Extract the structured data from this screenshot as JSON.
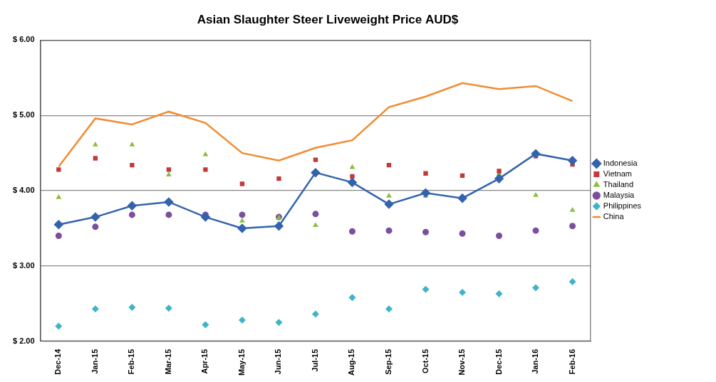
{
  "chart_data": {
    "type": "line",
    "title": "Asian Slaughter Steer Liveweight Price AUD$",
    "categories": [
      "Dec-14",
      "Jan-15",
      "Feb-15",
      "Mar-15",
      "Apr-15",
      "May-15",
      "Jun-15",
      "Jul-15",
      "Aug-15",
      "Sep-15",
      "Oct-15",
      "Nov-15",
      "Dec-15",
      "Jan-16",
      "Feb-16"
    ],
    "series": [
      {
        "name": "Indonesia",
        "color": "#3463ad",
        "type": "line",
        "marker": "diamond",
        "values": [
          3.55,
          3.65,
          3.8,
          3.85,
          3.65,
          3.5,
          3.53,
          4.24,
          4.11,
          3.82,
          3.97,
          3.9,
          4.16,
          4.49,
          4.4
        ]
      },
      {
        "name": "Vietnam",
        "color": "#c0393b",
        "type": "scatter",
        "marker": "square",
        "values": [
          4.28,
          4.43,
          4.34,
          4.28,
          4.28,
          4.09,
          4.16,
          4.41,
          4.19,
          4.34,
          4.23,
          4.2,
          4.26,
          4.46,
          4.35
        ]
      },
      {
        "name": "Thailand",
        "color": "#8fbc3f",
        "type": "scatter",
        "marker": "triangle",
        "values": [
          3.91,
          4.61,
          4.61,
          4.21,
          4.48,
          3.6,
          3.64,
          3.54,
          4.31,
          3.93,
          3.93,
          null,
          4.22,
          3.94,
          3.74
        ]
      },
      {
        "name": "Malaysia",
        "color": "#7b4f9d",
        "type": "scatter",
        "marker": "circle",
        "values": [
          3.4,
          3.52,
          3.68,
          3.68,
          3.68,
          3.68,
          3.65,
          3.69,
          3.46,
          3.47,
          3.45,
          3.43,
          3.4,
          3.47,
          3.53
        ]
      },
      {
        "name": "Philippines",
        "color": "#3fb3c8",
        "type": "scatter",
        "marker": "diamond",
        "values": [
          2.2,
          2.43,
          2.45,
          2.44,
          2.22,
          2.28,
          2.25,
          2.36,
          2.58,
          2.43,
          2.69,
          2.65,
          2.63,
          2.71,
          2.79
        ]
      },
      {
        "name": "China",
        "color": "#f28b30",
        "type": "line",
        "marker": "none",
        "values": [
          4.32,
          4.96,
          4.88,
          5.05,
          4.9,
          4.5,
          4.4,
          4.57,
          4.67,
          5.11,
          5.25,
          5.43,
          5.35,
          5.39,
          5.19
        ]
      }
    ],
    "ylim": [
      2,
      6
    ],
    "yticks": [
      {
        "value": 2,
        "label": "$ 2.00"
      },
      {
        "value": 3,
        "label": "$ 3.00"
      },
      {
        "value": 4,
        "label": "$ 4.00"
      },
      {
        "value": 5,
        "label": "$ 5.00"
      },
      {
        "value": 6,
        "label": "$ 6.00"
      }
    ],
    "grid": true,
    "legend": "right"
  }
}
